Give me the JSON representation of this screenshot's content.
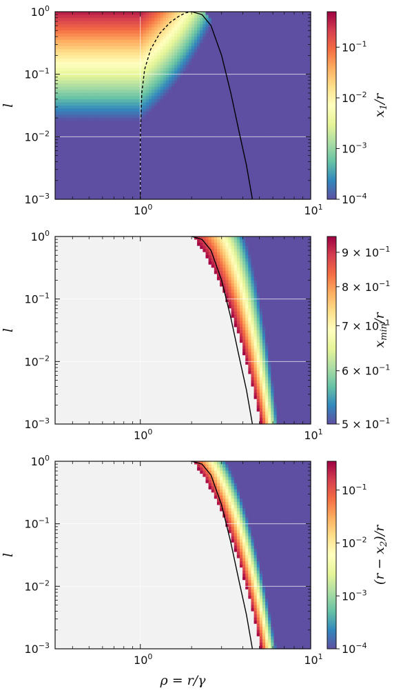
{
  "chart_data": [
    {
      "type": "heatmap",
      "ylabel": "l",
      "xlabel": "",
      "xscale": "log",
      "yscale": "log",
      "xlim": [
        0.316,
        10
      ],
      "ylim": [
        0.001,
        1
      ],
      "x_ticks": [
        {
          "base": "10",
          "exp": "0"
        },
        {
          "base": "10",
          "exp": "1"
        }
      ],
      "y_ticks": [
        {
          "base": "10",
          "exp": "−3"
        },
        {
          "base": "10",
          "exp": "−2"
        },
        {
          "base": "10",
          "exp": "−1"
        },
        {
          "base": "10",
          "exp": "0"
        }
      ],
      "colorbar": {
        "label": {
          "main": "x",
          "sub": "1",
          "rest": "/r"
        },
        "scale": "log",
        "range": [
          0.0001,
          0.5
        ],
        "ticks": [
          {
            "base": "10",
            "exp": "−4"
          },
          {
            "base": "10",
            "exp": "−3"
          },
          {
            "base": "10",
            "exp": "−2"
          },
          {
            "base": "10",
            "exp": "−1"
          }
        ],
        "tick_values": [
          0.0001,
          0.001,
          0.01,
          0.1
        ],
        "colormap": "Spectral_r"
      },
      "curves": [
        {
          "style": "dashed",
          "color": "#000000",
          "points": [
            [
              1.0,
              0.001
            ],
            [
              1.0,
              0.01
            ],
            [
              1.02,
              0.05
            ],
            [
              1.06,
              0.12
            ],
            [
              1.15,
              0.25
            ],
            [
              1.3,
              0.45
            ],
            [
              1.5,
              0.68
            ],
            [
              1.7,
              0.86
            ],
            [
              1.85,
              0.96
            ],
            [
              2.0,
              1.0
            ]
          ]
        },
        {
          "style": "solid",
          "color": "#000000",
          "points": [
            [
              2.0,
              1.0
            ],
            [
              2.3,
              0.9
            ],
            [
              2.6,
              0.6
            ],
            [
              3.0,
              0.2
            ],
            [
              3.4,
              0.05
            ],
            [
              3.8,
              0.012
            ],
            [
              4.2,
              0.0035
            ],
            [
              4.55,
              0.001
            ]
          ]
        }
      ]
    },
    {
      "type": "heatmap",
      "ylabel": "l",
      "xlabel": "",
      "xscale": "log",
      "yscale": "log",
      "xlim": [
        0.316,
        10
      ],
      "ylim": [
        0.001,
        1
      ],
      "x_ticks": [
        {
          "base": "10",
          "exp": "0"
        },
        {
          "base": "10",
          "exp": "1"
        }
      ],
      "y_ticks": [
        {
          "base": "10",
          "exp": "−3"
        },
        {
          "base": "10",
          "exp": "−2"
        },
        {
          "base": "10",
          "exp": "−1"
        },
        {
          "base": "10",
          "exp": "0"
        }
      ],
      "colorbar": {
        "label": {
          "main": "x",
          "sub": "min",
          "rest": "/r"
        },
        "scale": "log",
        "range": [
          0.5,
          0.95
        ],
        "ticks": [
          {
            "base": "5 × 10",
            "exp": "−1"
          },
          {
            "base": "6 × 10",
            "exp": "−1"
          },
          {
            "base": "7 × 10",
            "exp": "−1"
          },
          {
            "base": "8 × 10",
            "exp": "−1"
          },
          {
            "base": "9 × 10",
            "exp": "−1"
          }
        ],
        "tick_values": [
          0.5,
          0.6,
          0.7,
          0.8,
          0.9
        ],
        "colormap": "Spectral_r"
      },
      "curves": [
        {
          "style": "solid",
          "color": "#000000",
          "points": [
            [
              2.0,
              1.0
            ],
            [
              2.3,
              0.9
            ],
            [
              2.6,
              0.6
            ],
            [
              3.0,
              0.2
            ],
            [
              3.4,
              0.05
            ],
            [
              3.8,
              0.012
            ],
            [
              4.2,
              0.0035
            ],
            [
              4.55,
              0.001
            ]
          ]
        }
      ]
    },
    {
      "type": "heatmap",
      "ylabel": "l",
      "xlabel": "ρ = r/γ",
      "xscale": "log",
      "yscale": "log",
      "xlim": [
        0.316,
        10
      ],
      "ylim": [
        0.001,
        1
      ],
      "x_ticks": [
        {
          "base": "10",
          "exp": "0"
        },
        {
          "base": "10",
          "exp": "1"
        }
      ],
      "y_ticks": [
        {
          "base": "10",
          "exp": "−3"
        },
        {
          "base": "10",
          "exp": "−2"
        },
        {
          "base": "10",
          "exp": "−1"
        },
        {
          "base": "10",
          "exp": "0"
        }
      ],
      "colorbar": {
        "label": {
          "main": "(r − x",
          "sub": "2",
          "rest": ")/r"
        },
        "scale": "log",
        "range": [
          0.0001,
          0.35
        ],
        "ticks": [
          {
            "base": "10",
            "exp": "−4"
          },
          {
            "base": "10",
            "exp": "−3"
          },
          {
            "base": "10",
            "exp": "−2"
          },
          {
            "base": "10",
            "exp": "−1"
          }
        ],
        "tick_values": [
          0.0001,
          0.001,
          0.01,
          0.1
        ],
        "colormap": "Spectral_r"
      },
      "curves": [
        {
          "style": "solid",
          "color": "#000000",
          "points": [
            [
              2.0,
              1.0
            ],
            [
              2.3,
              0.9
            ],
            [
              2.6,
              0.6
            ],
            [
              3.0,
              0.2
            ],
            [
              3.4,
              0.05
            ],
            [
              3.8,
              0.012
            ],
            [
              4.2,
              0.0035
            ],
            [
              4.55,
              0.001
            ]
          ]
        }
      ]
    }
  ],
  "colors": {
    "cmap": [
      "#5e4fa2",
      "#3288bd",
      "#66c2a5",
      "#abdda4",
      "#e6f598",
      "#ffffbf",
      "#fee08b",
      "#fdae61",
      "#f46d43",
      "#d53e4f",
      "#9e0142"
    ],
    "empty_region": "#f2f2f2",
    "grid": "#ffffff"
  }
}
